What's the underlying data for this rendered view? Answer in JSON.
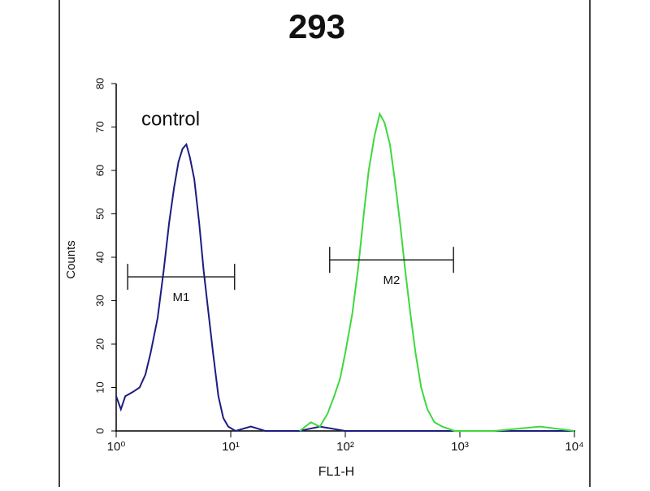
{
  "chart_data": {
    "type": "line",
    "title": "293",
    "xlabel": "FL1-H",
    "ylabel": "Counts",
    "xscale": "log",
    "xlim": [
      1,
      10000
    ],
    "ylim": [
      0,
      80
    ],
    "xticks": [
      {
        "value": 1,
        "label": "10⁰"
      },
      {
        "value": 10,
        "label": "10¹"
      },
      {
        "value": 100,
        "label": "10²"
      },
      {
        "value": 1000,
        "label": "10³"
      },
      {
        "value": 10000,
        "label": "10⁴"
      }
    ],
    "yticks": [
      0,
      10,
      20,
      30,
      40,
      50,
      60,
      70,
      80
    ],
    "series": [
      {
        "name": "control",
        "color": "#1c1c80",
        "x": [
          1,
          1.1,
          1.2,
          1.4,
          1.6,
          1.8,
          2,
          2.3,
          2.6,
          2.9,
          3.2,
          3.5,
          3.8,
          4.1,
          4.4,
          4.8,
          5.3,
          5.8,
          6.4,
          7,
          7.8,
          8.6,
          9.5,
          11,
          15,
          20,
          40,
          60,
          100,
          1000,
          10000
        ],
        "values": [
          8,
          5,
          8,
          9,
          10,
          13,
          18,
          26,
          37,
          48,
          56,
          62,
          65,
          66,
          63,
          58,
          48,
          37,
          27,
          18,
          8,
          3,
          1,
          0,
          1,
          0,
          0,
          1,
          0,
          0,
          0
        ]
      },
      {
        "color": "#3ed83e",
        "x": [
          40,
          50,
          60,
          70,
          80,
          90,
          100,
          115,
          130,
          145,
          160,
          180,
          200,
          220,
          245,
          270,
          300,
          330,
          370,
          410,
          460,
          520,
          600,
          700,
          900,
          2000,
          5000,
          10000
        ],
        "values": [
          0,
          2,
          1,
          4,
          8,
          12,
          18,
          27,
          38,
          50,
          60,
          68,
          73,
          71,
          66,
          58,
          48,
          38,
          27,
          18,
          10,
          5,
          2,
          1,
          0,
          0,
          1,
          0
        ]
      }
    ],
    "markers": [
      {
        "label": "M1",
        "range": [
          1.26,
          10.8
        ],
        "y": 35.5
      },
      {
        "label": "M2",
        "range": [
          73,
          880
        ],
        "y": 39.4
      }
    ]
  }
}
